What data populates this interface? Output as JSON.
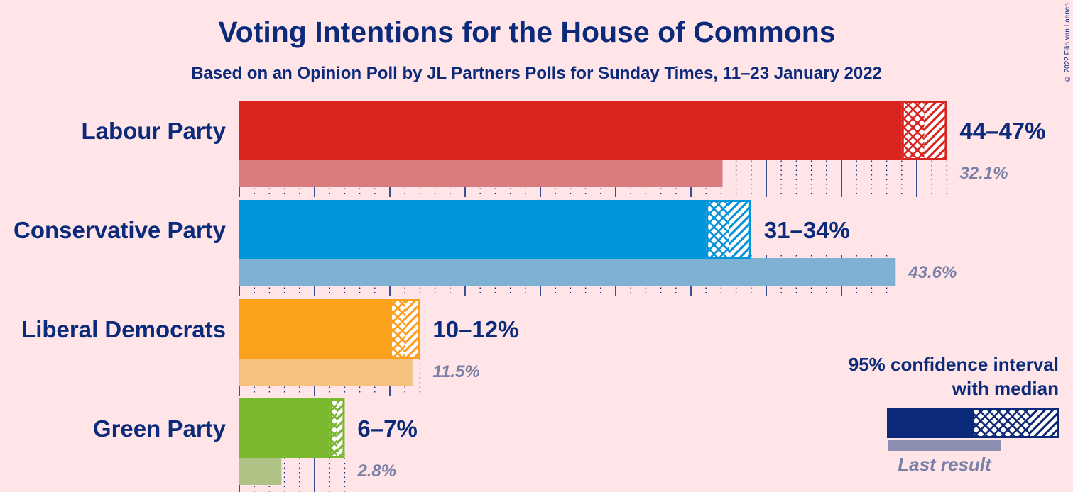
{
  "title": "Voting Intentions for the House of Commons",
  "subtitle": "Based on an Opinion Poll by JL Partners Polls for Sunday Times, 11–23 January 2022",
  "copyright": "© 2022 Filip van Laenen",
  "legend": {
    "ci_label_line1": "95% confidence interval",
    "ci_label_line2": "with median",
    "last_result_label": "Last result",
    "color": "#0B2A7A"
  },
  "chart_data": {
    "type": "bar",
    "orientation": "horizontal",
    "x_unit": "%",
    "categories": [
      "Labour Party",
      "Conservative Party",
      "Liberal Democrats",
      "Green Party"
    ],
    "series": [
      {
        "name": "95% confidence interval",
        "low": [
          44,
          31,
          10,
          6
        ],
        "high": [
          47,
          34,
          12,
          7
        ]
      },
      {
        "name": "Last result",
        "values": [
          32.1,
          43.6,
          11.5,
          2.8
        ]
      }
    ],
    "range_labels": [
      "44–47%",
      "31–34%",
      "10–12%",
      "6–7%"
    ],
    "last_labels": [
      "32.1%",
      "43.6%",
      "11.5%",
      "2.8%"
    ],
    "colors": [
      "#DA2420",
      "#0096DB",
      "#FBA11C",
      "#7AB82E"
    ],
    "last_colors": [
      "#D97C7E",
      "#7FB1D4",
      "#F4C17E",
      "#AEC285"
    ],
    "xlim": [
      0,
      48
    ],
    "gridlines": {
      "major_every": 5,
      "minor_every": 1
    }
  }
}
